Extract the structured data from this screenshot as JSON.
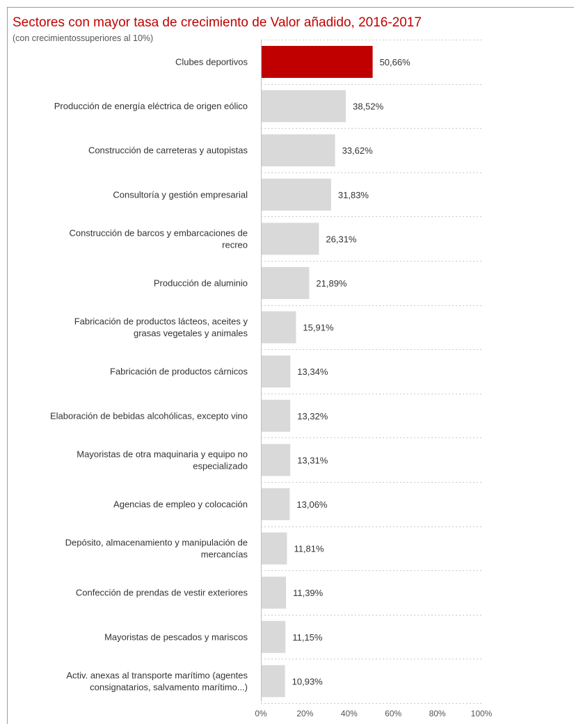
{
  "chart_data": {
    "type": "bar",
    "orientation": "horizontal",
    "title": "Sectores con mayor tasa de crecimiento de Valor añadido, 2016-2017",
    "subtitle": "(con crecimientossuperiores al 10%)",
    "categories": [
      [
        "Clubes deportivos"
      ],
      [
        "Producción de energía eléctrica de origen eólico"
      ],
      [
        "Construcción de carreteras y autopistas"
      ],
      [
        "Consultoría y gestión empresarial"
      ],
      [
        "Construcción de barcos y embarcaciones de",
        "recreo"
      ],
      [
        "Producción de aluminio"
      ],
      [
        "Fabricación de productos lácteos, aceites y",
        "grasas vegetales y animales"
      ],
      [
        "Fabricación de productos cárnicos"
      ],
      [
        "Elaboración de bebidas alcohólicas, excepto vino"
      ],
      [
        "Mayoristas de otra maquinaria y equipo no",
        "especializado"
      ],
      [
        "Agencias de empleo y colocación"
      ],
      [
        "Depósito, almacenamiento y manipulación de",
        "mercancías"
      ],
      [
        "Confección de prendas de vestir exteriores"
      ],
      [
        "Mayoristas de pescados y mariscos"
      ],
      [
        "Activ. anexas al transporte marítimo (agentes",
        "consignatarios, salvamento marítimo...)"
      ]
    ],
    "values": [
      50.66,
      38.52,
      33.62,
      31.83,
      26.31,
      21.89,
      15.91,
      13.34,
      13.32,
      13.31,
      13.06,
      11.81,
      11.39,
      11.15,
      10.93
    ],
    "value_labels": [
      "50,66%",
      "38,52%",
      "33,62%",
      "31,83%",
      "26,31%",
      "21,89%",
      "15,91%",
      "13,34%",
      "13,32%",
      "13,31%",
      "13,06%",
      "11,81%",
      "11,39%",
      "11,15%",
      "10,93%"
    ],
    "xlim": [
      0,
      100
    ],
    "xticks": [
      0,
      20,
      40,
      60,
      80,
      100
    ],
    "xtick_labels": [
      "0%",
      "20%",
      "40%",
      "60%",
      "80%",
      "100%"
    ],
    "highlight_index": 0,
    "colors": {
      "highlight": "#c00000",
      "bar": "#d9d9d9",
      "grid": "#c8c8c8",
      "title": "#c00000"
    },
    "grid": true
  }
}
